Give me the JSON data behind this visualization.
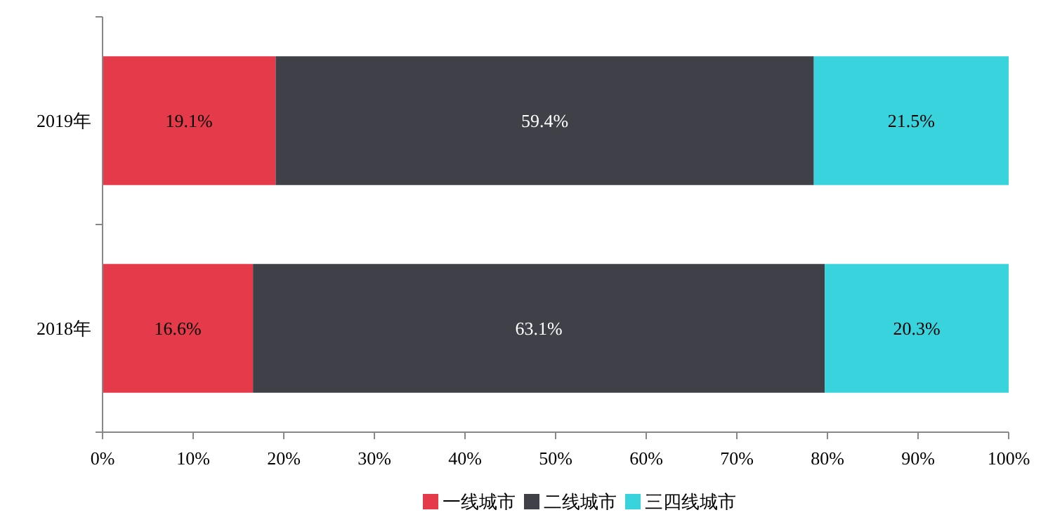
{
  "chart_data": {
    "type": "bar",
    "orientation": "horizontal",
    "stacked": true,
    "categories": [
      "2019年",
      "2018年"
    ],
    "series": [
      {
        "name": "一线城市",
        "color": "#e43a4a",
        "values": [
          19.1,
          16.6
        ],
        "value_labels": [
          "19.1%",
          "16.6%"
        ]
      },
      {
        "name": "二线城市",
        "color": "#3f4048",
        "values": [
          59.4,
          63.1
        ],
        "value_labels": [
          "59.4%",
          "63.1%"
        ]
      },
      {
        "name": "三四线城市",
        "color": "#39d3dd",
        "values": [
          21.5,
          20.3
        ],
        "value_labels": [
          "21.5%",
          "20.3%"
        ]
      }
    ],
    "xlim": [
      0,
      100
    ],
    "xticks": [
      {
        "value": 0,
        "label": "0%"
      },
      {
        "value": 10,
        "label": "10%"
      },
      {
        "value": 20,
        "label": "20%"
      },
      {
        "value": 30,
        "label": "30%"
      },
      {
        "value": 40,
        "label": "40%"
      },
      {
        "value": 50,
        "label": "50%"
      },
      {
        "value": 60,
        "label": "60%"
      },
      {
        "value": 70,
        "label": "70%"
      },
      {
        "value": 80,
        "label": "80%"
      },
      {
        "value": 90,
        "label": "90%"
      },
      {
        "value": 100,
        "label": "100%"
      }
    ],
    "grid": false,
    "legend": "bottom"
  }
}
